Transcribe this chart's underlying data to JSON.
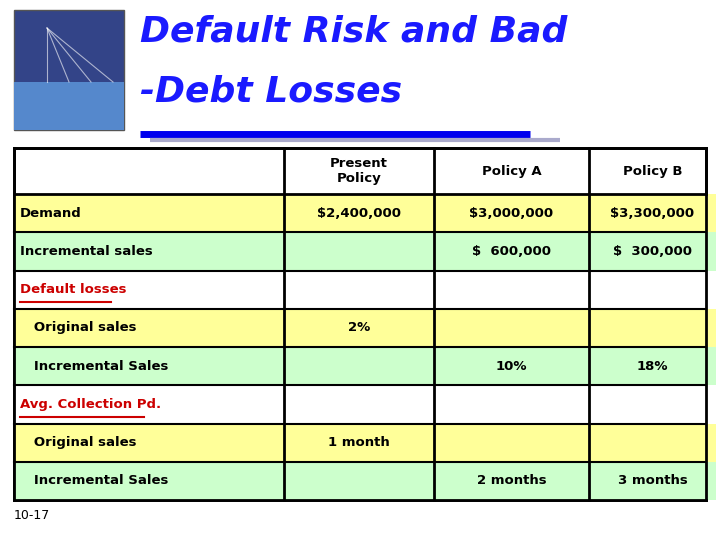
{
  "title_line1": "Default Risk and Bad",
  "title_line2": "-Debt Losses",
  "title_color": "#1a1aff",
  "title_fontsize": 26,
  "underline_color_blue": "#0000ee",
  "underline_color_gray": "#aaaacc",
  "slide_bg": "#ffffff",
  "page_num": "10-17",
  "col_headers": [
    "Present\nPolicy",
    "Policy A",
    "Policy B"
  ],
  "rows": [
    {
      "label": "Demand",
      "indent": false,
      "label_color": "#000000",
      "label_underline": false,
      "values": [
        "$2,400,000",
        "$3,000,000",
        "$3,300,000"
      ],
      "label_bg": "#ffff99",
      "val_bgs": [
        "#ffff99",
        "#ffff99",
        "#ffff99"
      ]
    },
    {
      "label": "Incremental sales",
      "indent": false,
      "label_color": "#000000",
      "label_underline": false,
      "values": [
        "",
        "$  600,000",
        "$  300,000"
      ],
      "label_bg": "#ccffcc",
      "val_bgs": [
        "#ccffcc",
        "#ccffcc",
        "#ccffcc"
      ]
    },
    {
      "label": "Default losses",
      "indent": false,
      "label_color": "#cc0000",
      "label_underline": true,
      "values": [
        "",
        "",
        ""
      ],
      "label_bg": "#ffffff",
      "val_bgs": [
        "#ffffff",
        "#ffffff",
        "#ffffff"
      ]
    },
    {
      "label": "   Original sales",
      "indent": true,
      "label_color": "#000000",
      "label_underline": false,
      "values": [
        "2%",
        "",
        ""
      ],
      "label_bg": "#ffff99",
      "val_bgs": [
        "#ffff99",
        "#ffff99",
        "#ffff99"
      ]
    },
    {
      "label": "   Incremental Sales",
      "indent": true,
      "label_color": "#000000",
      "label_underline": false,
      "values": [
        "",
        "10%",
        "18%"
      ],
      "label_bg": "#ccffcc",
      "val_bgs": [
        "#ccffcc",
        "#ccffcc",
        "#ccffcc"
      ]
    },
    {
      "label": "Avg. Collection Pd.",
      "indent": false,
      "label_color": "#cc0000",
      "label_underline": true,
      "values": [
        "",
        "",
        ""
      ],
      "label_bg": "#ffffff",
      "val_bgs": [
        "#ffffff",
        "#ffffff",
        "#ffffff"
      ]
    },
    {
      "label": "   Original sales",
      "indent": true,
      "label_color": "#000000",
      "label_underline": false,
      "values": [
        "1 month",
        "",
        ""
      ],
      "label_bg": "#ffff99",
      "val_bgs": [
        "#ffff99",
        "#ffff99",
        "#ffff99"
      ]
    },
    {
      "label": "   Incremental Sales",
      "indent": true,
      "label_color": "#000000",
      "label_underline": false,
      "values": [
        "",
        "2 months",
        "3 months"
      ],
      "label_bg": "#ccffcc",
      "val_bgs": [
        "#ccffcc",
        "#ccffcc",
        "#ccffcc"
      ]
    }
  ],
  "table_border_color": "#000000",
  "img_placeholder_color": "#334488"
}
